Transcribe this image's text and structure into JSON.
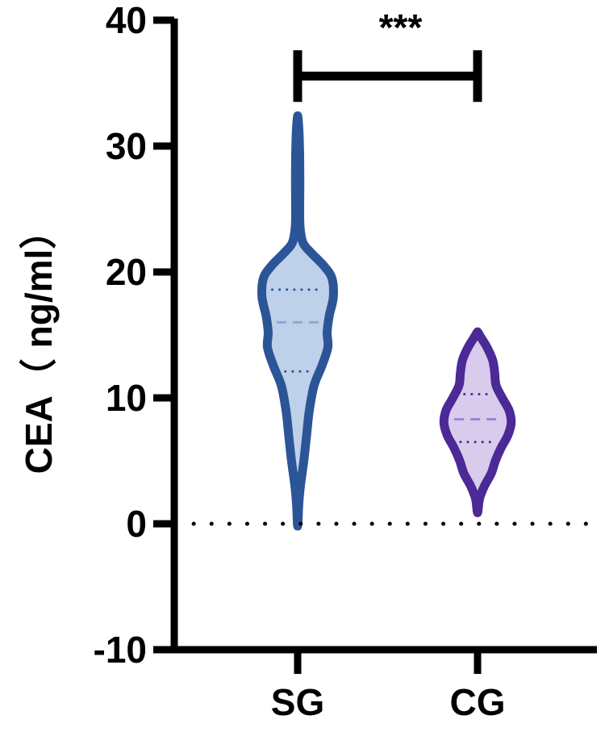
{
  "chart_data": {
    "type": "violin",
    "title": "",
    "xlabel": "",
    "ylabel": "CEA（ ng/ml）",
    "ylim": [
      -10,
      40
    ],
    "yticks": [
      -10,
      0,
      10,
      20,
      30,
      40
    ],
    "categories": [
      "SG",
      "CG"
    ],
    "reference_line": 0,
    "grid": false,
    "legend": "none",
    "significance": {
      "label": "***",
      "between": [
        "SG",
        "CG"
      ],
      "y": 36.2
    },
    "series": [
      {
        "category": "SG",
        "min": 0,
        "max": 32.3,
        "q1": 12.1,
        "median": 16.0,
        "q3": 18.6,
        "stroke": "#2b5597",
        "fill": "#bfd1ea",
        "median_color": "#8aa9d6",
        "density": [
          [
            0,
            0.2
          ],
          [
            1.5,
            0.8
          ],
          [
            3,
            2.0
          ],
          [
            5,
            4.5
          ],
          [
            7,
            6.5
          ],
          [
            9,
            8.5
          ],
          [
            11,
            12.0
          ],
          [
            12.5,
            17.5
          ],
          [
            14,
            22.0
          ],
          [
            15.2,
            21.5
          ],
          [
            16.5,
            23.0
          ],
          [
            18,
            26.0
          ],
          [
            19.5,
            25.0
          ],
          [
            20.5,
            19.0
          ],
          [
            21.5,
            10.0
          ],
          [
            22.3,
            4.0
          ],
          [
            23.5,
            1.8
          ],
          [
            25,
            1.5
          ],
          [
            27,
            1.6
          ],
          [
            29,
            1.5
          ],
          [
            30.5,
            1.2
          ],
          [
            31.5,
            0.8
          ],
          [
            32.3,
            0.2
          ]
        ]
      },
      {
        "category": "CG",
        "min": 1.0,
        "max": 15.2,
        "q1": 6.5,
        "median": 8.3,
        "q3": 10.3,
        "stroke": "#4b2996",
        "fill": "#d9cbec",
        "median_color": "#9f86d0",
        "density": [
          [
            1.0,
            0.3
          ],
          [
            2.0,
            1.5
          ],
          [
            3.0,
            5.0
          ],
          [
            4.0,
            10.0
          ],
          [
            5.0,
            13.0
          ],
          [
            6.0,
            17.0
          ],
          [
            7.0,
            22.0
          ],
          [
            8.0,
            24.5
          ],
          [
            9.0,
            23.0
          ],
          [
            10.0,
            18.0
          ],
          [
            11.0,
            13.5
          ],
          [
            12.0,
            12.5
          ],
          [
            13.0,
            11.0
          ],
          [
            14.0,
            7.0
          ],
          [
            14.8,
            2.5
          ],
          [
            15.2,
            0.3
          ]
        ]
      }
    ]
  }
}
